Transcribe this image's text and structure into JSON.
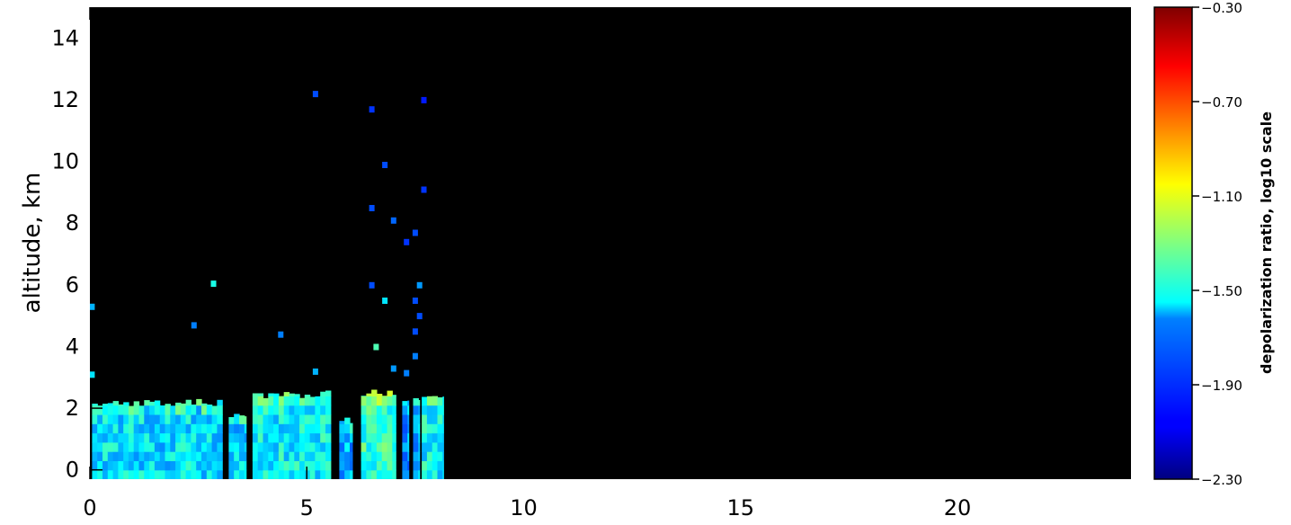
{
  "chart_data": {
    "type": "heatmap",
    "title": "",
    "xlabel": "",
    "ylabel": "altitude, km",
    "xlim": [
      0,
      24
    ],
    "ylim": [
      -0.3,
      15
    ],
    "x_ticks": [
      0,
      5,
      10,
      15,
      20
    ],
    "y_ticks": [
      0,
      2,
      4,
      6,
      8,
      10,
      12,
      14
    ],
    "background": "#000000",
    "colorbar": {
      "label": "depolarization ratio, log10 scale",
      "range": [
        -2.3,
        -0.3
      ],
      "ticks": [
        "-0.30",
        "-0.70",
        "-1.10",
        "-1.50",
        "-1.90",
        "-2.30"
      ],
      "colormap": "jet"
    },
    "cloud_columns": [
      {
        "x0": 0.05,
        "x1": 3.05,
        "top": 2.15,
        "value": -1.6
      },
      {
        "x0": 3.2,
        "x1": 3.6,
        "top": 1.7,
        "value": -1.65
      },
      {
        "x0": 3.75,
        "x1": 5.55,
        "top": 2.45,
        "value": -1.55
      },
      {
        "x0": 5.75,
        "x1": 6.05,
        "top": 1.55,
        "value": -1.7
      },
      {
        "x0": 6.25,
        "x1": 7.05,
        "top": 2.55,
        "value": -1.45
      },
      {
        "x0": 7.2,
        "x1": 7.35,
        "top": 2.3,
        "value": -1.75
      },
      {
        "x0": 7.45,
        "x1": 7.6,
        "top": 2.2,
        "value": -1.7
      },
      {
        "x0": 7.65,
        "x1": 8.15,
        "top": 2.3,
        "value": -1.55
      }
    ],
    "gaps": [
      3.1,
      3.65,
      5.6,
      6.15,
      7.1,
      7.4
    ],
    "speckles": [
      {
        "x": 5.2,
        "y": 12.2,
        "value": -1.9
      },
      {
        "x": 7.7,
        "y": 12.0,
        "value": -2.0
      },
      {
        "x": 6.5,
        "y": 11.7,
        "value": -1.95
      },
      {
        "x": 6.8,
        "y": 9.9,
        "value": -1.9
      },
      {
        "x": 7.7,
        "y": 9.1,
        "value": -1.95
      },
      {
        "x": 6.5,
        "y": 8.5,
        "value": -1.9
      },
      {
        "x": 7.0,
        "y": 8.1,
        "value": -1.85
      },
      {
        "x": 7.5,
        "y": 7.7,
        "value": -1.9
      },
      {
        "x": 7.3,
        "y": 7.4,
        "value": -1.95
      },
      {
        "x": 2.85,
        "y": 6.05,
        "value": -1.5
      },
      {
        "x": 7.6,
        "y": 6.0,
        "value": -1.75
      },
      {
        "x": 6.5,
        "y": 6.0,
        "value": -1.9
      },
      {
        "x": 7.5,
        "y": 5.5,
        "value": -1.9
      },
      {
        "x": 7.6,
        "y": 5.0,
        "value": -1.9
      },
      {
        "x": 6.8,
        "y": 5.5,
        "value": -1.6
      },
      {
        "x": 2.4,
        "y": 4.7,
        "value": -1.8
      },
      {
        "x": 7.5,
        "y": 4.5,
        "value": -1.9
      },
      {
        "x": 4.4,
        "y": 4.4,
        "value": -1.8
      },
      {
        "x": 6.6,
        "y": 4.0,
        "value": -1.4
      },
      {
        "x": 7.5,
        "y": 3.7,
        "value": -1.8
      },
      {
        "x": 5.2,
        "y": 3.2,
        "value": -1.7
      },
      {
        "x": 7.0,
        "y": 3.3,
        "value": -1.75
      },
      {
        "x": 7.3,
        "y": 3.15,
        "value": -1.8
      },
      {
        "x": 0.05,
        "y": 3.1,
        "value": -1.6
      },
      {
        "x": 0.05,
        "y": 5.3,
        "value": -1.7
      }
    ]
  }
}
